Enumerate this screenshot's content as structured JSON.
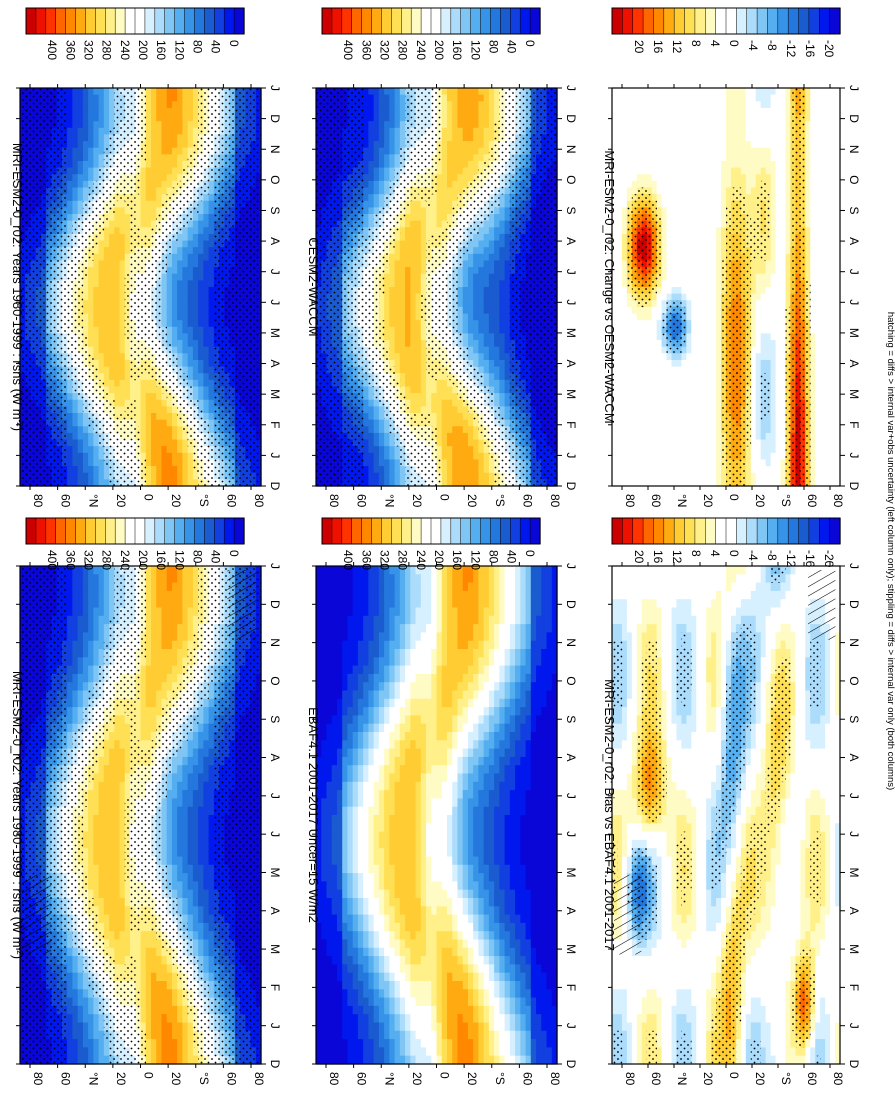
{
  "figure": {
    "footer": "hatching = diffs > internal var+obs uncertainty (left column only); stippling = diffs > internal var only (both columns)",
    "variable": "rsns",
    "units": "W m-2"
  },
  "chart_data": [
    {
      "id": "p1",
      "type": "heatmap",
      "title": "MRI-ESM2-0_r02: Years 1980-1999 : rsns (W m",
      "title_sup": "-2",
      "title_tail": ")",
      "months": [
        "D",
        "J",
        "F",
        "M",
        "A",
        "M",
        "J",
        "J",
        "A",
        "S",
        "O",
        "N",
        "D",
        "J"
      ],
      "lat_ticks": [
        "80",
        "60",
        "°N",
        "20",
        "0",
        "20",
        "°S",
        "60",
        "80"
      ],
      "colorbar": [
        "400",
        "360",
        "320",
        "280",
        "240",
        "200",
        "160",
        "120",
        "80",
        "40",
        "0"
      ],
      "range": [
        0,
        420
      ],
      "field": "clim",
      "stipple": true,
      "hatch": true
    },
    {
      "id": "p2",
      "type": "heatmap",
      "title": "EBAF4.1 2001-2017 Uncer=15 W/m2",
      "months": [
        "D",
        "J",
        "F",
        "M",
        "A",
        "M",
        "J",
        "J",
        "A",
        "S",
        "O",
        "N",
        "D",
        "J"
      ],
      "lat_ticks": [
        "80",
        "60",
        "°N",
        "20",
        "0",
        "20",
        "°S",
        "60",
        "80"
      ],
      "colorbar": [
        "400",
        "360",
        "320",
        "280",
        "240",
        "200",
        "160",
        "120",
        "80",
        "40",
        "0"
      ],
      "range": [
        0,
        420
      ],
      "field": "clim",
      "stipple": false,
      "hatch": false
    },
    {
      "id": "p3",
      "type": "heatmap",
      "title": "MRI-ESM2-0_r02: Bias vs EBAF4.1 2001-2017",
      "months": [
        "D",
        "J",
        "F",
        "M",
        "A",
        "M",
        "J",
        "J",
        "A",
        "S",
        "O",
        "N",
        "D",
        "J"
      ],
      "lat_ticks": [
        "80",
        "60",
        "°N",
        "20",
        "0",
        "20",
        "°S",
        "60",
        "80"
      ],
      "colorbar": [
        "20",
        "16",
        "12",
        "8",
        "4",
        "0",
        "-4",
        "-8",
        "-12",
        "-16",
        "-20"
      ],
      "range": [
        -22,
        22
      ],
      "field": "bias",
      "stipple": true,
      "hatch": true
    },
    {
      "id": "p4",
      "type": "heatmap",
      "title": "MRI-ESM2-0_r02: Years 1980-1999 : rsns (W m",
      "title_sup": "-2",
      "title_tail": ")",
      "months": [
        "D",
        "J",
        "F",
        "M",
        "A",
        "M",
        "J",
        "J",
        "A",
        "S",
        "O",
        "N",
        "D",
        "J"
      ],
      "lat_ticks": [
        "80",
        "60",
        "°N",
        "20",
        "0",
        "20",
        "°S",
        "60",
        "80"
      ],
      "colorbar": [
        "400",
        "360",
        "320",
        "280",
        "240",
        "200",
        "160",
        "120",
        "80",
        "40",
        "0"
      ],
      "range": [
        0,
        420
      ],
      "field": "clim",
      "stipple": true,
      "hatch": false
    },
    {
      "id": "p5",
      "type": "heatmap",
      "title": "CESM2-WACCM",
      "months": [
        "D",
        "J",
        "F",
        "M",
        "A",
        "M",
        "J",
        "J",
        "A",
        "S",
        "O",
        "N",
        "D",
        "J"
      ],
      "lat_ticks": [
        "80",
        "60",
        "°N",
        "20",
        "0",
        "20",
        "°S",
        "60",
        "80"
      ],
      "colorbar": [
        "400",
        "360",
        "320",
        "280",
        "240",
        "200",
        "160",
        "120",
        "80",
        "40",
        "0"
      ],
      "range": [
        0,
        420
      ],
      "field": "clim",
      "stipple": true,
      "hatch": false
    },
    {
      "id": "p6",
      "type": "heatmap",
      "title": "MRI-ESM2-0_r02: Change vs CESM2-WACCM",
      "months": [
        "D",
        "J",
        "F",
        "M",
        "A",
        "M",
        "J",
        "J",
        "A",
        "S",
        "O",
        "N",
        "D",
        "J"
      ],
      "lat_ticks": [
        "80",
        "60",
        "°N",
        "20",
        "0",
        "20",
        "°S",
        "60",
        "80"
      ],
      "colorbar": [
        "20",
        "16",
        "12",
        "8",
        "4",
        "0",
        "-4",
        "-8",
        "-12",
        "-16",
        "-20"
      ],
      "range": [
        -22,
        22
      ],
      "field": "change",
      "stipple": true,
      "hatch": false
    }
  ]
}
